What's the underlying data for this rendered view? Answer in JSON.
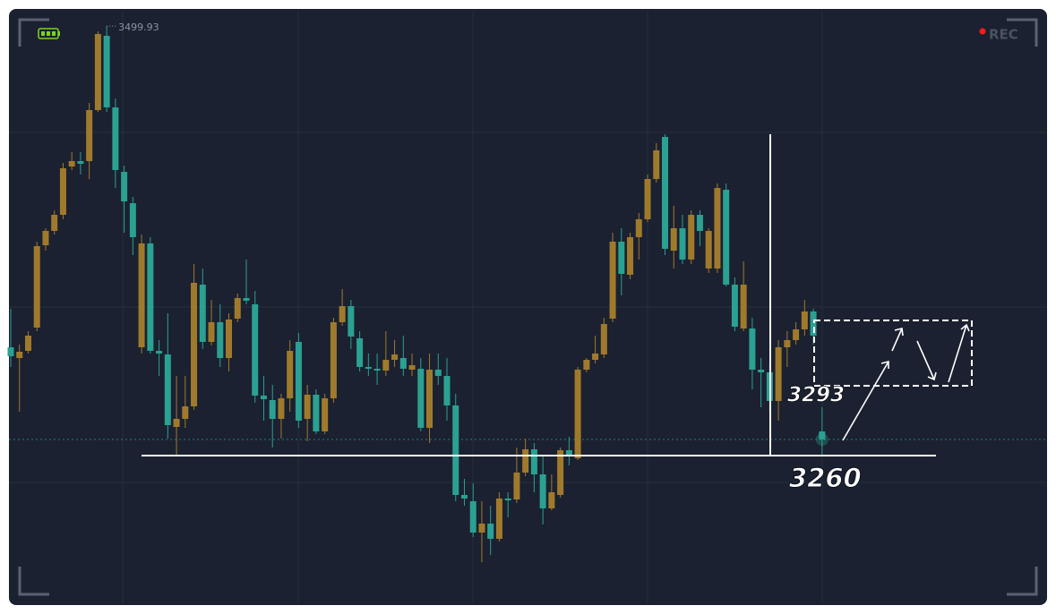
{
  "chart_data": {
    "type": "candlestick",
    "up_color": "#a07a2c",
    "down_color": "#2aa192",
    "ylim": [
      3177.5,
      3508.5
    ],
    "open": [
      3320.5,
      3314.5,
      3318.5,
      3331.5,
      3377.5,
      3385.5,
      3394.5,
      3421.5,
      3424.5,
      3424.5,
      3453,
      3494.5,
      3454.5,
      3418.5,
      3401,
      3320.5,
      3378.5,
      3318.5,
      3316.5,
      3276,
      3280.5,
      3287.5,
      3355.5,
      3323.5,
      3334.5,
      3314.5,
      3336.5,
      3348,
      3344.5,
      3293.5,
      3291,
      3280.5,
      3292,
      3323.5,
      3280.5,
      3294,
      3273.5,
      3292,
      3334.5,
      3343.5,
      3325.5,
      3309.5,
      3308.5,
      3307.5,
      3313.5,
      3314.5,
      3308,
      3308.5,
      3275.5,
      3308,
      3304.5,
      3288,
      3238,
      3234.5,
      3217,
      3222,
      3213.5,
      3236,
      3235.5,
      3250.5,
      3263.5,
      3249.5,
      3230.5,
      3238,
      3263,
      3258.5,
      3308,
      3313.5,
      3316.5,
      3336.5,
      3379.5,
      3361,
      3382,
      3392,
      3414.5,
      3438,
      3374.5,
      3387,
      3369.5,
      3394.5,
      3364.5,
      3364.5,
      3408.5,
      3355.5,
      3331,
      3331,
      3308,
      3306.5,
      3290.5,
      3320.5,
      3324.5,
      3330.5,
      3340.5,
      3273.5
    ],
    "high": [
      3342,
      3322,
      3329.5,
      3379.5,
      3387,
      3397,
      3423.5,
      3429.5,
      3429.5,
      3457,
      3497,
      3499.93,
      3459.5,
      3422,
      3404.5,
      3383.5,
      3382,
      3324.5,
      3339.5,
      3304.5,
      3304.5,
      3367,
      3364.5,
      3347,
      3344.5,
      3339.5,
      3350.5,
      3369.5,
      3352,
      3304.5,
      3299.5,
      3294.5,
      3324.5,
      3328.5,
      3299.5,
      3297,
      3294.5,
      3337,
      3353,
      3347,
      3329.5,
      3317,
      3317,
      3329.5,
      3324.5,
      3327,
      3317,
      3314.5,
      3317,
      3317,
      3314.5,
      3294.5,
      3247,
      3244.5,
      3234.5,
      3232,
      3239.5,
      3239.5,
      3264.5,
      3269.5,
      3267,
      3259.5,
      3249.5,
      3264.5,
      3270.5,
      3309.5,
      3314.5,
      3327,
      3337,
      3384.5,
      3387,
      3384.5,
      3395.5,
      3417,
      3434.5,
      3439.5,
      3399.5,
      3394.5,
      3397,
      3397,
      3387,
      3412,
      3412,
      3359.5,
      3368.5,
      3337,
      3314.5,
      3312,
      3324.5,
      3329.5,
      3334.5,
      3347,
      3342,
      3287
    ],
    "low": [
      3309.5,
      3284.5,
      3317,
      3329.5,
      3374.5,
      3383.5,
      3392,
      3419.5,
      3417,
      3414.5,
      3452,
      3452,
      3409.5,
      3384.5,
      3372,
      3317,
      3317,
      3304.5,
      3269.5,
      3259.5,
      3275.5,
      3285.5,
      3319.5,
      3321.5,
      3309.5,
      3307,
      3334.5,
      3344.5,
      3289.5,
      3279.5,
      3264.5,
      3269.5,
      3284.5,
      3275.5,
      3268,
      3272,
      3272,
      3289.5,
      3332.5,
      3319.5,
      3307,
      3304.5,
      3299.5,
      3304.5,
      3309.5,
      3304.5,
      3304.5,
      3273.5,
      3267,
      3299.5,
      3279.5,
      3234.5,
      3232,
      3214.5,
      3200.5,
      3204.5,
      3212,
      3225.5,
      3233.5,
      3248.5,
      3239.5,
      3221.5,
      3229.5,
      3236.5,
      3254.5,
      3257.5,
      3306.5,
      3311.5,
      3314.5,
      3334.5,
      3349.5,
      3358.5,
      3369.5,
      3390.5,
      3412.5,
      3372,
      3364.5,
      3367,
      3367,
      3377,
      3362,
      3362,
      3354.5,
      3329.5,
      3329.5,
      3297,
      3287,
      3284.5,
      3279.5,
      3309.5,
      3322,
      3327,
      3322,
      3259.5
    ],
    "close": [
      3315.5,
      3318,
      3327,
      3377,
      3385.5,
      3394.5,
      3420.5,
      3424.5,
      3423,
      3453,
      3495.5,
      3454.5,
      3419.5,
      3402,
      3382,
      3378.5,
      3318.5,
      3317,
      3277,
      3280.5,
      3287.5,
      3356.5,
      3323.5,
      3334.5,
      3314.5,
      3336,
      3348,
      3346.5,
      3293.5,
      3291.5,
      3280.5,
      3292,
      3318.5,
      3279.5,
      3294,
      3273.5,
      3292,
      3334.5,
      3343.5,
      3326.5,
      3309.5,
      3308.5,
      3307.5,
      3313.5,
      3316.5,
      3308.5,
      3310.5,
      3275.5,
      3308,
      3304.5,
      3288,
      3238,
      3236,
      3217,
      3222,
      3213.5,
      3236,
      3235,
      3250.5,
      3263.5,
      3249.5,
      3230.5,
      3239.5,
      3263,
      3259.5,
      3308,
      3313.5,
      3317,
      3333.5,
      3379.5,
      3361.5,
      3382,
      3392,
      3414.5,
      3430.5,
      3375.5,
      3387,
      3369.5,
      3394.5,
      3385.5,
      3385.5,
      3409.5,
      3355.5,
      3332,
      3355.5,
      3308,
      3306.5,
      3290.5,
      3320.5,
      3324.5,
      3330.5,
      3340.5,
      3327,
      3269
    ],
    "last_price": 3269,
    "levels": [
      3260,
      3293
    ],
    "status": "REC"
  }
}
